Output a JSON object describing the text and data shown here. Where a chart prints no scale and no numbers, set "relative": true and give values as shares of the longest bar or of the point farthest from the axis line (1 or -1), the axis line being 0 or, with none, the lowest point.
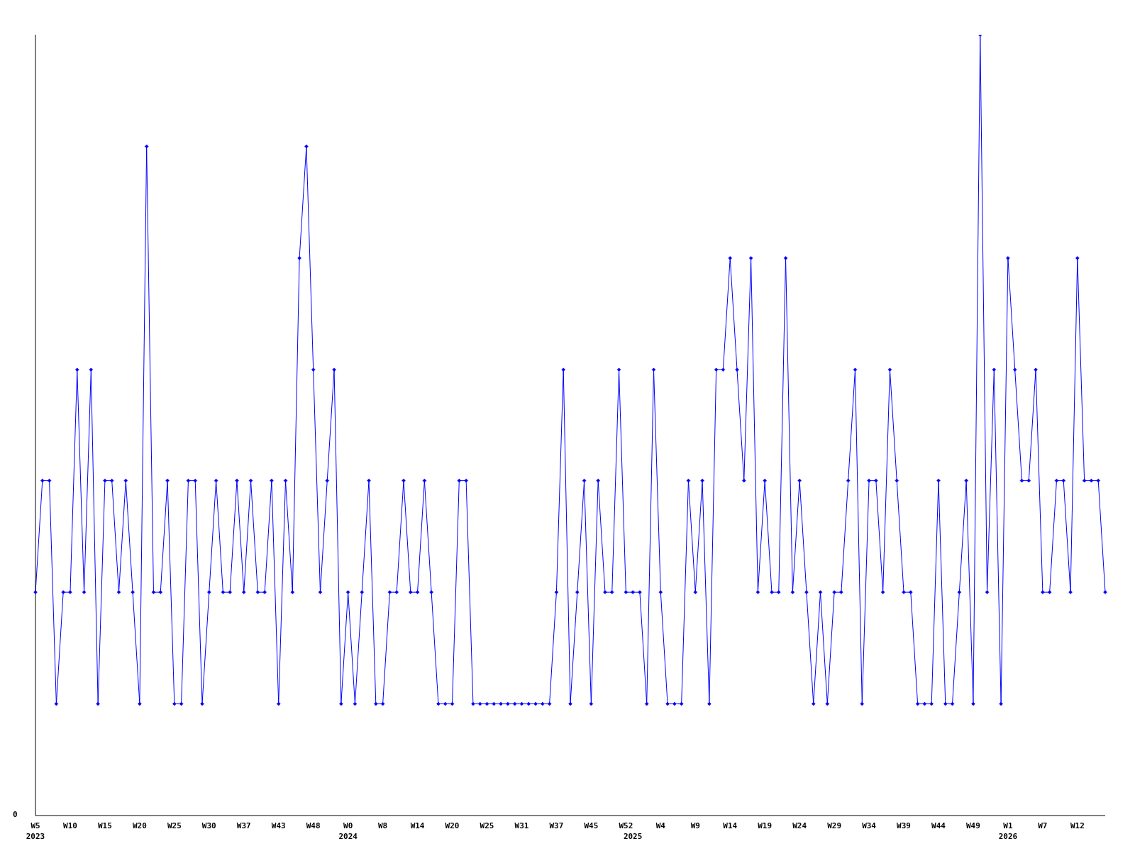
{
  "chart_data": {
    "type": "line",
    "relative": true,
    "marker": "diamond",
    "line_style": "solid",
    "grid": false,
    "legend": false,
    "annotations": [
      "0"
    ],
    "categories": [
      "W5\n2023",
      null,
      null,
      null,
      null,
      "W10",
      null,
      null,
      null,
      null,
      "W15",
      null,
      null,
      null,
      null,
      "W20",
      null,
      null,
      null,
      null,
      "W25",
      null,
      null,
      null,
      null,
      "W30",
      null,
      null,
      null,
      null,
      "W37",
      null,
      null,
      null,
      null,
      "W43",
      null,
      null,
      null,
      null,
      "W48",
      null,
      null,
      null,
      null,
      "W0\n2024",
      null,
      null,
      null,
      null,
      "W8",
      null,
      null,
      null,
      null,
      "W14",
      null,
      null,
      null,
      null,
      "W20",
      null,
      null,
      null,
      null,
      "W25",
      null,
      null,
      null,
      null,
      "W31",
      null,
      null,
      null,
      null,
      "W37",
      null,
      null,
      null,
      null,
      "W45",
      null,
      null,
      null,
      null,
      "W52",
      "\n2025",
      null,
      null,
      null,
      "W4",
      null,
      null,
      null,
      null,
      "W9",
      null,
      null,
      null,
      null,
      "W14",
      null,
      null,
      null,
      null,
      "W19",
      null,
      null,
      null,
      null,
      "W24",
      null,
      null,
      null,
      null,
      "W29",
      null,
      null,
      null,
      null,
      "W34",
      null,
      null,
      null,
      null,
      "W39",
      null,
      null,
      null,
      null,
      "W44",
      null,
      null,
      null,
      null,
      "W49",
      null,
      null,
      null,
      null,
      "W1\n2026",
      null,
      null,
      null,
      null,
      "W7",
      null,
      null,
      null,
      null,
      "W12",
      null,
      null,
      null,
      null
    ],
    "series": [
      {
        "color": "#0000ff",
        "values": [
          0.286,
          0.429,
          0.429,
          0.143,
          0.286,
          0.286,
          0.571,
          0.286,
          0.571,
          0.143,
          0.429,
          0.429,
          0.286,
          0.429,
          0.286,
          0.143,
          0.857,
          0.286,
          0.286,
          0.429,
          0.143,
          0.143,
          0.429,
          0.429,
          0.143,
          0.286,
          0.429,
          0.286,
          0.286,
          0.429,
          0.286,
          0.429,
          0.286,
          0.286,
          0.429,
          0.143,
          0.429,
          0.286,
          0.714,
          0.857,
          0.571,
          0.286,
          0.429,
          0.571,
          0.143,
          0.286,
          0.143,
          0.286,
          0.429,
          0.143,
          0.143,
          0.286,
          0.286,
          0.429,
          0.286,
          0.286,
          0.429,
          0.286,
          0.143,
          0.143,
          0.143,
          0.429,
          0.429,
          0.143,
          0.143,
          0.143,
          0.143,
          0.143,
          0.143,
          0.143,
          0.143,
          0.143,
          0.143,
          0.143,
          0.143,
          0.286,
          0.571,
          0.143,
          0.286,
          0.429,
          0.143,
          0.429,
          0.286,
          0.286,
          0.571,
          0.286,
          0.286,
          0.286,
          0.143,
          0.571,
          0.286,
          0.143,
          0.143,
          0.143,
          0.429,
          0.286,
          0.429,
          0.143,
          0.571,
          0.571,
          0.714,
          0.571,
          0.429,
          0.714,
          0.286,
          0.429,
          0.286,
          0.286,
          0.714,
          0.286,
          0.429,
          0.286,
          0.143,
          0.286,
          0.143,
          0.286,
          0.286,
          0.429,
          0.571,
          0.143,
          0.429,
          0.429,
          0.286,
          0.571,
          0.429,
          0.286,
          0.286,
          0.143,
          0.143,
          0.143,
          0.429,
          0.143,
          0.143,
          0.286,
          0.429,
          0.143,
          1,
          0.286,
          0.571,
          0.143,
          0.714,
          0.571,
          0.429,
          0.429,
          0.571,
          0.286,
          0.286,
          0.429,
          0.429,
          0.286,
          0.714,
          0.429,
          0.429,
          0.429,
          0.286
        ]
      }
    ]
  }
}
